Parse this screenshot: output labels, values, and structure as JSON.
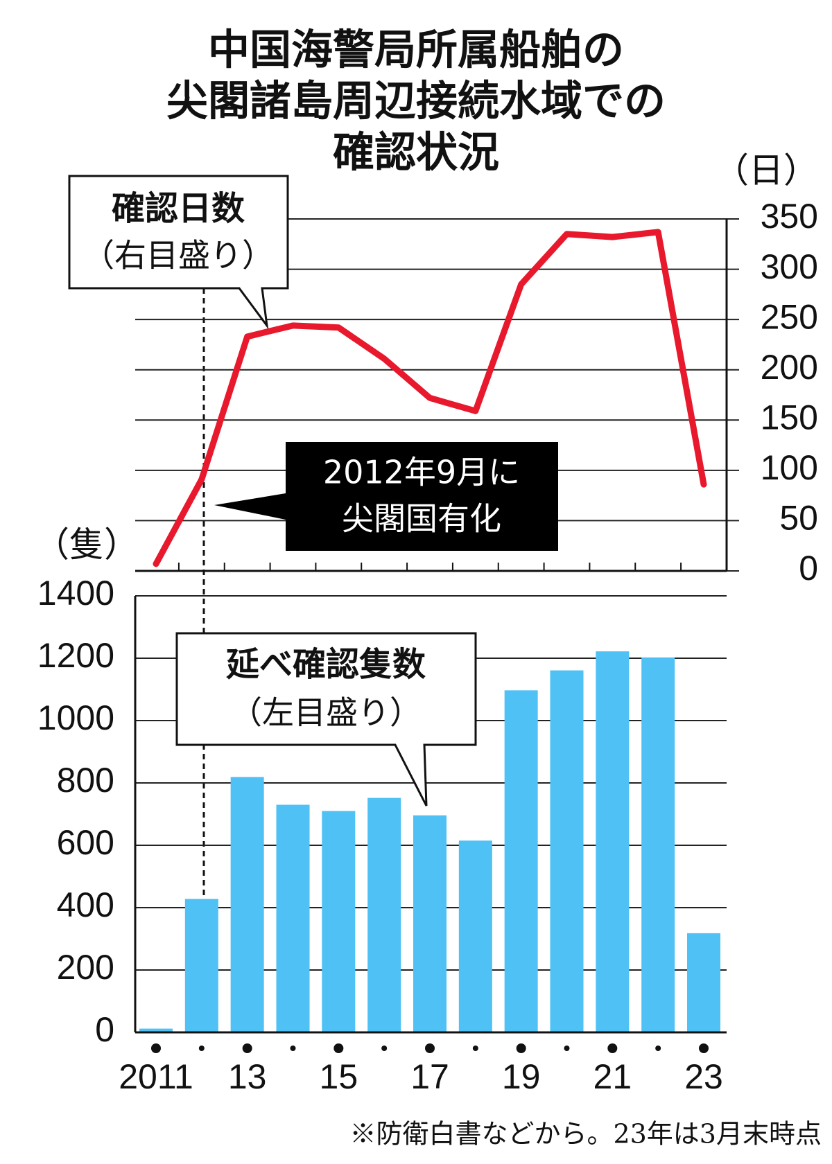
{
  "title": [
    "中国海警局所属船舶の",
    "尖閣諸島周辺接続水域での",
    "確認状況"
  ],
  "note": "※防衛白書などから。23年は3月末時点",
  "chart_data": [
    {
      "type": "line",
      "axis": "y2",
      "y2label": "（日）",
      "color": "#e8192c",
      "annotations": [
        "確認日数",
        "（右目盛り）",
        "2012年9月に",
        "尖閣国有化"
      ],
      "values": [
        7,
        91,
        233,
        244,
        242,
        211,
        172,
        159,
        285,
        335,
        332,
        337,
        86
      ],
      "y2lim": [
        0,
        350
      ],
      "y2ticks": [
        0,
        50,
        100,
        150,
        200,
        250,
        300,
        350
      ],
      "grid": true
    },
    {
      "type": "bar",
      "ylabel": "（隻）",
      "color": "#4fc1f5",
      "annotations": [
        "延べ確認隻数",
        "（左目盛り）"
      ],
      "categories": [
        "2011",
        null,
        "13",
        null,
        "15",
        null,
        "17",
        null,
        "19",
        null,
        "21",
        null,
        "23"
      ],
      "values": [
        12,
        428,
        819,
        730,
        710,
        752,
        696,
        615,
        1097,
        1161,
        1222,
        1202,
        318
      ],
      "ylim": [
        0,
        1400
      ],
      "yticks": [
        0,
        200,
        400,
        600,
        800,
        1000,
        1200,
        1400
      ],
      "grid": true
    }
  ]
}
